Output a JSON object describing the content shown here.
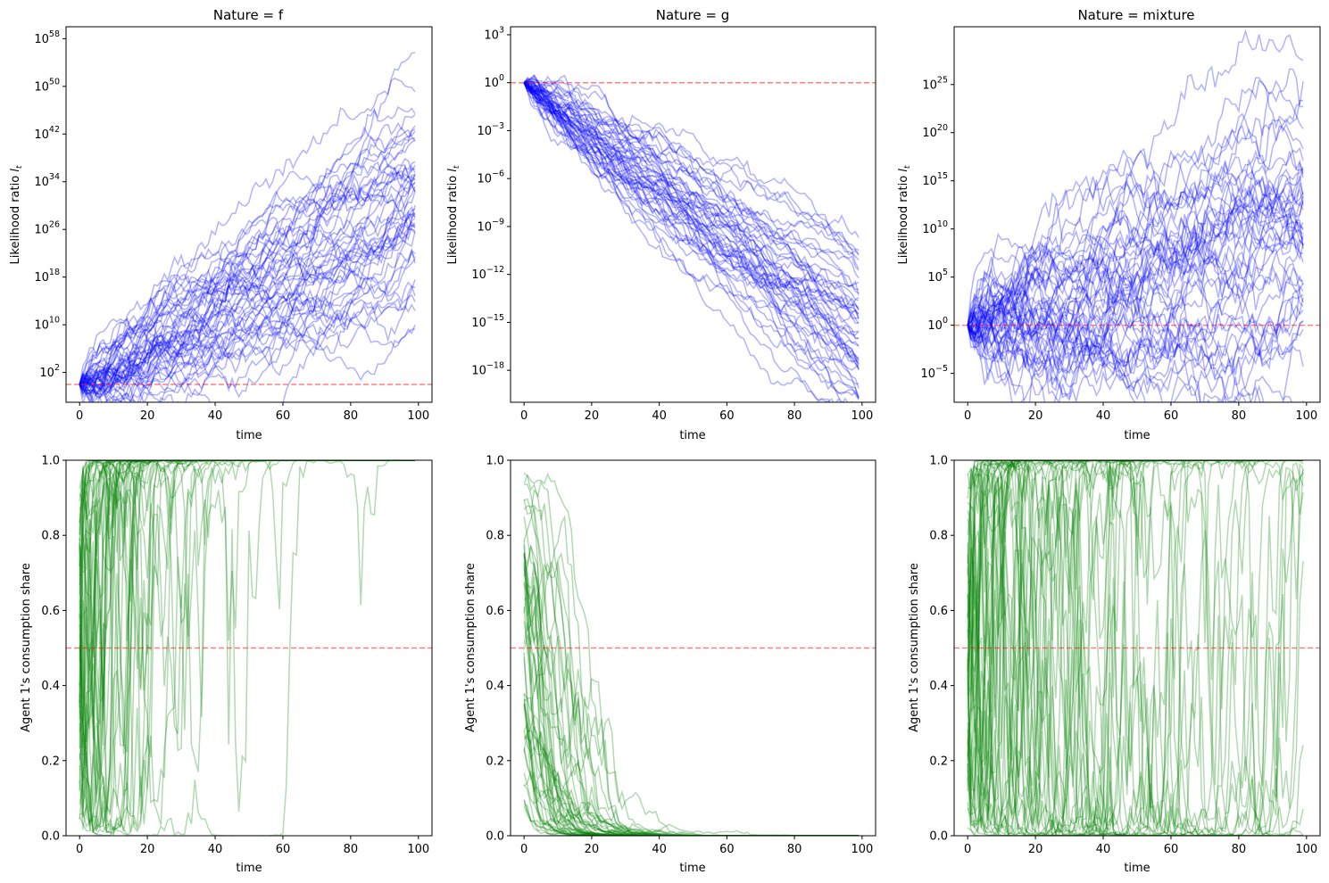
{
  "figure": {
    "panels": [
      {
        "title": "Nature = f",
        "xlabel": "time",
        "ylabel": "Likelihood ratio l_t",
        "ylabel_main": "Likelihood ratio ",
        "ylabel_var": "l",
        "ylabel_sub": "t",
        "xticks": [
          "0",
          "20",
          "40",
          "60",
          "80",
          "100"
        ],
        "yticks": [
          {
            "base": "10",
            "exp": "2"
          },
          {
            "base": "10",
            "exp": "10"
          },
          {
            "base": "10",
            "exp": "18"
          },
          {
            "base": "10",
            "exp": "26"
          },
          {
            "base": "10",
            "exp": "34"
          },
          {
            "base": "10",
            "exp": "42"
          },
          {
            "base": "10",
            "exp": "50"
          },
          {
            "base": "10",
            "exp": "58"
          }
        ]
      },
      {
        "title": "Nature = g",
        "xlabel": "time",
        "ylabel": "Likelihood ratio l_t",
        "ylabel_main": "Likelihood ratio ",
        "ylabel_var": "l",
        "ylabel_sub": "t",
        "xticks": [
          "0",
          "20",
          "40",
          "60",
          "80",
          "100"
        ],
        "yticks": [
          {
            "base": "10",
            "exp": "−18"
          },
          {
            "base": "10",
            "exp": "−15"
          },
          {
            "base": "10",
            "exp": "−12"
          },
          {
            "base": "10",
            "exp": "−9"
          },
          {
            "base": "10",
            "exp": "−6"
          },
          {
            "base": "10",
            "exp": "−3"
          },
          {
            "base": "10",
            "exp": "0"
          },
          {
            "base": "10",
            "exp": "3"
          }
        ]
      },
      {
        "title": "Nature = mixture",
        "xlabel": "time",
        "ylabel": "Likelihood ratio l_t",
        "ylabel_main": "Likelihood ratio ",
        "ylabel_var": "l",
        "ylabel_sub": "t",
        "xticks": [
          "0",
          "20",
          "40",
          "60",
          "80",
          "100"
        ],
        "yticks": [
          {
            "base": "10",
            "exp": "−5"
          },
          {
            "base": "10",
            "exp": "0"
          },
          {
            "base": "10",
            "exp": "5"
          },
          {
            "base": "10",
            "exp": "10"
          },
          {
            "base": "10",
            "exp": "15"
          },
          {
            "base": "10",
            "exp": "20"
          },
          {
            "base": "10",
            "exp": "25"
          }
        ]
      },
      {
        "title": "",
        "xlabel": "time",
        "ylabel": "Agent 1's consumption share",
        "xticks": [
          "0",
          "20",
          "40",
          "60",
          "80",
          "100"
        ],
        "yticks": [
          "0.0",
          "0.2",
          "0.4",
          "0.6",
          "0.8",
          "1.0"
        ]
      },
      {
        "title": "",
        "xlabel": "time",
        "ylabel": "Agent 1's consumption share",
        "xticks": [
          "0",
          "20",
          "40",
          "60",
          "80",
          "100"
        ],
        "yticks": [
          "0.0",
          "0.2",
          "0.4",
          "0.6",
          "0.8",
          "1.0"
        ]
      },
      {
        "title": "",
        "xlabel": "time",
        "ylabel": "Agent 1's consumption share",
        "xticks": [
          "0",
          "20",
          "40",
          "60",
          "80",
          "100"
        ],
        "yticks": [
          "0.0",
          "0.2",
          "0.4",
          "0.6",
          "0.8",
          "1.0"
        ]
      }
    ],
    "colors": {
      "likelihood_lines": "#0000ff",
      "share_lines": "#008000",
      "reference_line": "#ff0000"
    }
  },
  "chart_data": [
    {
      "type": "line",
      "title": "Nature = f",
      "xlabel": "time",
      "ylabel": "Likelihood ratio l_t",
      "yscale": "log10",
      "xlim": [
        -4,
        104
      ],
      "ylim_log10": [
        -3,
        60
      ],
      "x_range": [
        0,
        99
      ],
      "reference_line_y": 1,
      "n_paths": 50,
      "paths": {
        "start_log10": 0,
        "drift_log10_per_step": 0.31,
        "step_sd_log10": 1.0,
        "seed": 11
      },
      "path_endpoint_range_log10": [
        16,
        56
      ],
      "line_color": "#0000ff",
      "line_alpha": 0.3
    },
    {
      "type": "line",
      "title": "Nature = g",
      "xlabel": "time",
      "ylabel": "Likelihood ratio l_t",
      "yscale": "log10",
      "xlim": [
        -4,
        104
      ],
      "ylim_log10": [
        -20,
        3.5
      ],
      "x_range": [
        0,
        99
      ],
      "reference_line_y": 1,
      "n_paths": 50,
      "paths": {
        "start_log10": 0,
        "drift_log10_per_step": -0.165,
        "step_sd_log10": 0.25,
        "seed": 23
      },
      "path_endpoint_range_log10": [
        -19.5,
        -10.5
      ],
      "line_color": "#0000ff",
      "line_alpha": 0.3
    },
    {
      "type": "line",
      "title": "Nature = mixture",
      "xlabel": "time",
      "ylabel": "Likelihood ratio l_t",
      "yscale": "log10",
      "xlim": [
        -4,
        104
      ],
      "ylim_log10": [
        -8,
        31
      ],
      "x_range": [
        0,
        99
      ],
      "reference_line_y": 1,
      "n_paths": 50,
      "paths": {
        "start_log10": 0,
        "drift_log10_per_step": 0.085,
        "step_sd_log10": 1.05,
        "seed": 37
      },
      "path_endpoint_range_log10": [
        -7,
        29
      ],
      "line_color": "#0000ff",
      "line_alpha": 0.3
    },
    {
      "type": "line",
      "title": "",
      "xlabel": "time",
      "ylabel": "Agent 1's consumption share",
      "xlim": [
        -4,
        104
      ],
      "ylim": [
        0.0,
        1.0
      ],
      "x_range": [
        0,
        99
      ],
      "reference_line_y": 0.5,
      "n_paths": 50,
      "paths": {
        "derived_from": "Nature = f",
        "share": "logistic",
        "offset_log10_sd": 1.0,
        "rate": 0.6,
        "seed": 101
      },
      "line_color": "#008000",
      "line_alpha": 0.3
    },
    {
      "type": "line",
      "title": "",
      "xlabel": "time",
      "ylabel": "Agent 1's consumption share",
      "xlim": [
        -4,
        104
      ],
      "ylim": [
        0.0,
        1.0
      ],
      "x_range": [
        0,
        99
      ],
      "reference_line_y": 0.5,
      "n_paths": 50,
      "paths": {
        "derived_from": "Nature = g",
        "share": "logistic",
        "offset_log10_sd": 1.0,
        "rate": 0.6,
        "seed": 202
      },
      "line_color": "#008000",
      "line_alpha": 0.3
    },
    {
      "type": "line",
      "title": "",
      "xlabel": "time",
      "ylabel": "Agent 1's consumption share",
      "xlim": [
        -4,
        104
      ],
      "ylim": [
        0.0,
        1.0
      ],
      "x_range": [
        0,
        99
      ],
      "reference_line_y": 0.5,
      "n_paths": 50,
      "paths": {
        "derived_from": "Nature = mixture",
        "share": "logistic",
        "offset_log10_sd": 1.0,
        "rate": 0.6,
        "seed": 303
      },
      "line_color": "#008000",
      "line_alpha": 0.3
    }
  ]
}
